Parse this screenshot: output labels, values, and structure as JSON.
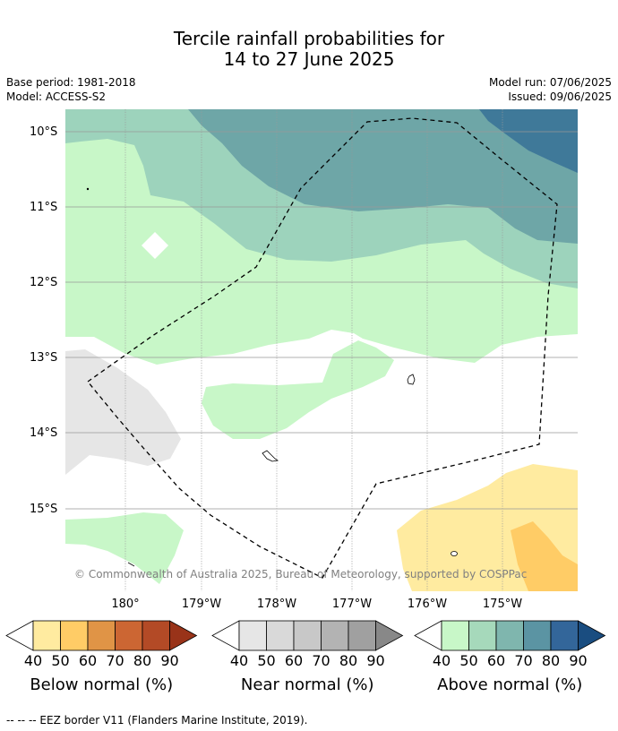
{
  "title": {
    "line1": "Tercile rainfall probabilities for",
    "line2": "14 to 27 June 2025"
  },
  "meta": {
    "base_period": "Base period: 1981-2018",
    "model": "Model: ACCESS-S2",
    "model_run": "Model run: 07/06/2025",
    "issued": "Issued: 09/06/2025"
  },
  "map": {
    "lat_labels": [
      "10°S",
      "11°S",
      "12°S",
      "13°S",
      "14°S",
      "15°S"
    ],
    "lon_labels": [
      "180°",
      "179°W",
      "178°W",
      "177°W",
      "176°W",
      "175°W"
    ],
    "copyright": "© Commonwealth of Australia 2025, Bureau of Meteorology, supported by COSPPac",
    "colors": {
      "above_40": "#c8f7c8",
      "above_50": "#9dd3bc",
      "above_60": "#6ea6a7",
      "above_70": "#3f7999",
      "near_40": "#e6e6e6",
      "below_40": "#ffeba0",
      "below_50": "#ffcc66",
      "gridline": "#999999",
      "eez_line": "#000000"
    }
  },
  "colorbars": [
    {
      "title": "Below normal (%)",
      "ticks": [
        "40",
        "50",
        "60",
        "70",
        "80",
        "90"
      ],
      "colors": [
        "#ffeba0",
        "#ffcc66",
        "#e09446",
        "#cc6633",
        "#b34a26",
        "#993319"
      ]
    },
    {
      "title": "Near normal (%)",
      "ticks": [
        "40",
        "50",
        "60",
        "70",
        "80",
        "90"
      ],
      "colors": [
        "#e6e6e6",
        "#d9d9d9",
        "#c8c8c8",
        "#b3b3b3",
        "#a0a0a0",
        "#888888"
      ]
    },
    {
      "title": "Above normal (%)",
      "ticks": [
        "40",
        "50",
        "60",
        "70",
        "80",
        "90"
      ],
      "colors": [
        "#c8f7c8",
        "#a6d9bb",
        "#7fb6ae",
        "#5b94a3",
        "#33669a",
        "#1a4d80"
      ]
    }
  ],
  "footnote": "--  --  -- EEZ border V11 (Flanders Marine Institute, 2019)."
}
